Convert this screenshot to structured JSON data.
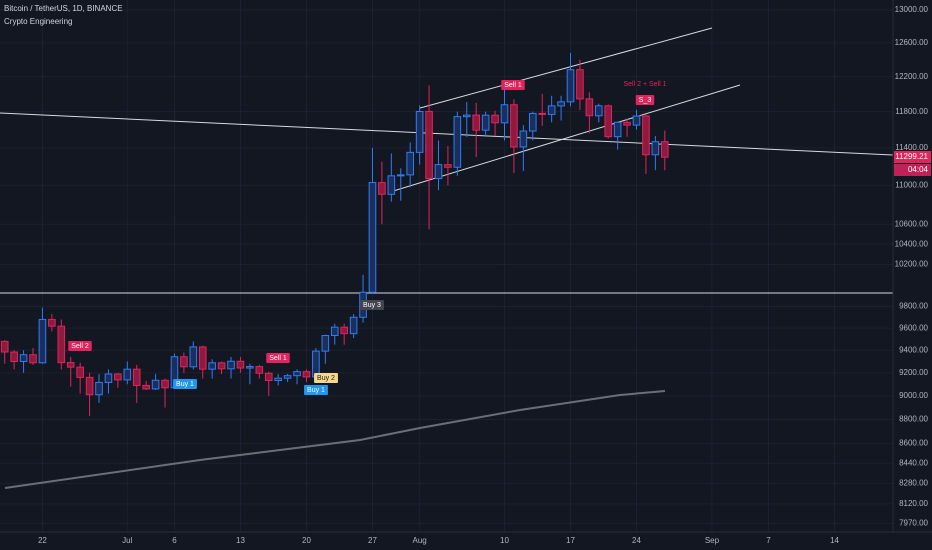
{
  "chart_data": {
    "type": "candlestick",
    "title": "Bitcoin / TetherUS, 1D, BINANCE",
    "subtitle": "Crypto Engineering",
    "open": [
      9480,
      9384,
      9300,
      9360,
      9288,
      9680,
      9618,
      9290,
      9250,
      9160,
      9010,
      9116,
      9190,
      9138,
      9232,
      9090,
      9060,
      9135,
      9070,
      9342,
      9253,
      9430,
      9232,
      9288,
      9235,
      9302,
      9242,
      9255,
      9196,
      9133,
      9153,
      9175,
      9210,
      9164,
      9392,
      9533,
      9609,
      9550,
      9700,
      9934,
      11029,
      10906,
      11100,
      11110,
      11351,
      11802,
      11071,
      11219,
      11191,
      11744,
      11762,
      11594,
      11760,
      11675,
      11878,
      11410,
      11584,
      11780,
      11769,
      11865,
      11911,
      12281,
      11945,
      11754,
      11866,
      11522,
      11681,
      11650,
      11751,
      11325,
      11467
    ],
    "high": [
      9490,
      9400,
      9400,
      9420,
      9790,
      9730,
      9680,
      9340,
      9290,
      9200,
      9190,
      9230,
      9200,
      9300,
      9270,
      9130,
      9190,
      9150,
      9370,
      9380,
      9480,
      9440,
      9320,
      9300,
      9340,
      9340,
      9280,
      9270,
      9210,
      9190,
      9190,
      9230,
      9230,
      9420,
      9540,
      9640,
      9640,
      9730,
      10100,
      11400,
      11250,
      11340,
      11180,
      11460,
      11870,
      12100,
      11480,
      11420,
      11800,
      11910,
      11900,
      11800,
      11810,
      12060,
      11940,
      11650,
      11800,
      12000,
      11980,
      11980,
      12480,
      12400,
      12020,
      11890,
      11880,
      11690,
      11720,
      11820,
      11770,
      11530,
      11590
    ],
    "low": [
      9280,
      9230,
      9200,
      9270,
      9280,
      9570,
      9230,
      9080,
      9020,
      8830,
      8940,
      9020,
      9070,
      9100,
      8940,
      9050,
      9050,
      8900,
      9060,
      9200,
      9230,
      9150,
      9150,
      9190,
      9150,
      9200,
      9100,
      9150,
      9000,
      9090,
      9120,
      9100,
      9120,
      9150,
      9280,
      9450,
      9450,
      9510,
      9650,
      9920,
      10600,
      10830,
      10840,
      10980,
      11220,
      10550,
      10950,
      11000,
      11100,
      11520,
      11300,
      11520,
      11530,
      11480,
      11130,
      11150,
      11480,
      11640,
      11680,
      11700,
      11860,
      11820,
      11560,
      11680,
      11500,
      11380,
      11520,
      11600,
      11120,
      11160,
      11160
    ],
    "close": [
      9384,
      9300,
      9360,
      9288,
      9680,
      9618,
      9290,
      9250,
      9160,
      9010,
      9116,
      9190,
      9138,
      9232,
      9090,
      9060,
      9135,
      9070,
      9342,
      9253,
      9430,
      9232,
      9288,
      9235,
      9302,
      9242,
      9255,
      9196,
      9133,
      9153,
      9175,
      9210,
      9164,
      9392,
      9533,
      9609,
      9550,
      9700,
      9934,
      11029,
      10906,
      11100,
      11110,
      11351,
      11802,
      11071,
      11219,
      11191,
      11744,
      11762,
      11594,
      11760,
      11675,
      11878,
      11410,
      11584,
      11780,
      11769,
      11865,
      11911,
      12281,
      11945,
      11754,
      11866,
      11522,
      11681,
      11650,
      11751,
      11325,
      11467,
      11299.21
    ],
    "up_color": "#2f7cf6",
    "down_color": "#e0245e",
    "log_scale": true,
    "grid": true,
    "ylim": [
      7905,
      13125
    ],
    "yticks": [
      {
        "value": 13000,
        "label": "13000.00"
      },
      {
        "value": 12600,
        "label": "12600.00"
      },
      {
        "value": 12200,
        "label": "12200.00"
      },
      {
        "value": 11800,
        "label": "11800.00"
      },
      {
        "value": 11400,
        "label": "11400.00"
      },
      {
        "value": 11000,
        "label": "11000.00"
      },
      {
        "value": 10600,
        "label": "10600.00"
      },
      {
        "value": 10400,
        "label": "10400.00"
      },
      {
        "value": 10200,
        "label": "10200.00"
      },
      {
        "value": 9800,
        "label": "9800.00"
      },
      {
        "value": 9600,
        "label": "9600.00"
      },
      {
        "value": 9400,
        "label": "9400.00"
      },
      {
        "value": 9200,
        "label": "9200.00"
      },
      {
        "value": 9000,
        "label": "9000.00"
      },
      {
        "value": 8800,
        "label": "8800.00"
      },
      {
        "value": 8600,
        "label": "8600.00"
      },
      {
        "value": 8440,
        "label": "8440.00"
      },
      {
        "value": 8280,
        "label": "8280.00"
      },
      {
        "value": 8120,
        "label": "8120.00"
      },
      {
        "value": 7970,
        "label": "7970.00"
      }
    ],
    "xlim": [
      -0.5,
      94.2
    ],
    "xticks": [
      {
        "value": 4,
        "label": "22"
      },
      {
        "value": 13,
        "label": "Jul"
      },
      {
        "value": 18,
        "label": "6"
      },
      {
        "value": 25,
        "label": "13"
      },
      {
        "value": 32,
        "label": "20"
      },
      {
        "value": 39,
        "label": "27"
      },
      {
        "value": 44,
        "label": "Aug"
      },
      {
        "value": 53,
        "label": "10"
      },
      {
        "value": 60,
        "label": "17"
      },
      {
        "value": 67,
        "label": "24"
      },
      {
        "value": 75,
        "label": "Sep"
      },
      {
        "value": 81,
        "label": "7"
      },
      {
        "value": 88,
        "label": "14"
      }
    ],
    "last_price": 11299.21,
    "countdown": "04:04",
    "annotations": [
      "Sell 2",
      "Buy 1",
      "Sell 1",
      "Buy 2",
      "Buy 1",
      "Buy 3",
      "Sell 1",
      "Sell 2 + Sell 1",
      "S_3"
    ]
  }
}
